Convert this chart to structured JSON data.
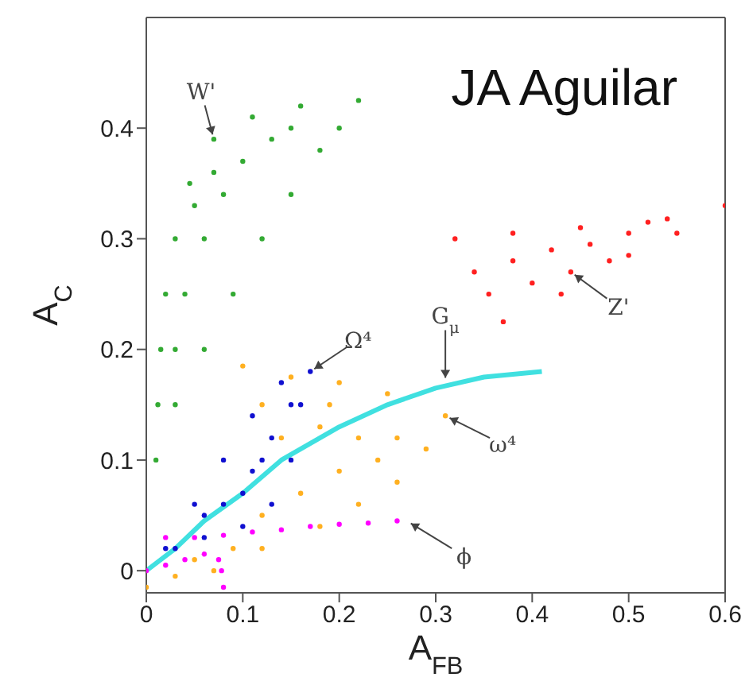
{
  "chart_data": {
    "type": "scatter",
    "xlabel": "A$_{FB}$",
    "ylabel": "A$_{C}$",
    "xlim": [
      0,
      0.6
    ],
    "xticks": [
      0,
      0.1,
      0.2,
      0.3,
      0.4,
      0.5,
      0.6
    ],
    "ylim": [
      -0.02,
      0.5
    ],
    "yticks": [
      0,
      0.1,
      0.2,
      0.3,
      0.4
    ],
    "grid": false,
    "legend": false,
    "marker": "circle",
    "series": [
      {
        "color": "#33aa33",
        "x": [
          0.01,
          0.012,
          0.015,
          0.02,
          0.03,
          0.045,
          0.07,
          0.11,
          0.16,
          0.22,
          0.03,
          0.06,
          0.09,
          0.12,
          0.15,
          0.18,
          0.2,
          0.04,
          0.06,
          0.08,
          0.1,
          0.13,
          0.03,
          0.05,
          0.07,
          0.15
        ],
        "values": [
          0.1,
          0.15,
          0.2,
          0.25,
          0.3,
          0.35,
          0.39,
          0.41,
          0.42,
          0.425,
          0.15,
          0.2,
          0.25,
          0.3,
          0.34,
          0.38,
          0.4,
          0.25,
          0.3,
          0.34,
          0.37,
          0.39,
          0.2,
          0.33,
          0.36,
          0.4
        ]
      },
      {
        "color": "#ff2020",
        "x": [
          0.32,
          0.6,
          0.37,
          0.43,
          0.5,
          0.55,
          0.38,
          0.45,
          0.52,
          0.34,
          0.355,
          0.38,
          0.42,
          0.46,
          0.5,
          0.4,
          0.44,
          0.48,
          0.54
        ],
        "values": [
          0.3,
          0.33,
          0.225,
          0.25,
          0.285,
          0.305,
          0.305,
          0.31,
          0.315,
          0.27,
          0.25,
          0.28,
          0.29,
          0.295,
          0.305,
          0.26,
          0.27,
          0.28,
          0.318
        ]
      },
      {
        "color": "#ffb020",
        "x": [
          0.0,
          0.03,
          0.07,
          0.12,
          0.18,
          0.22,
          0.26,
          0.29,
          0.31,
          0.25,
          0.2,
          0.15,
          0.1,
          0.12,
          0.14,
          0.18,
          0.22,
          0.26,
          0.2,
          0.16,
          0.12,
          0.09,
          0.05,
          0.24,
          0.19
        ],
        "values": [
          -0.015,
          -0.005,
          0.0,
          0.02,
          0.04,
          0.06,
          0.08,
          0.11,
          0.14,
          0.16,
          0.17,
          0.175,
          0.185,
          0.15,
          0.12,
          0.13,
          0.12,
          0.12,
          0.09,
          0.07,
          0.05,
          0.02,
          0.01,
          0.1,
          0.15
        ]
      },
      {
        "color": "#1010d0",
        "x": [
          0.02,
          0.05,
          0.08,
          0.11,
          0.14,
          0.17,
          0.16,
          0.15,
          0.13,
          0.1,
          0.06,
          0.03,
          0.08,
          0.11,
          0.13,
          0.15,
          0.1,
          0.06,
          0.12
        ],
        "values": [
          0.02,
          0.06,
          0.1,
          0.14,
          0.17,
          0.18,
          0.15,
          0.1,
          0.06,
          0.04,
          0.03,
          0.02,
          0.06,
          0.09,
          0.12,
          0.15,
          0.07,
          0.05,
          0.1
        ]
      },
      {
        "color": "#ff00ff",
        "x": [
          0.0,
          0.02,
          0.04,
          0.06,
          0.075,
          0.08,
          0.078,
          0.02,
          0.05,
          0.08,
          0.11,
          0.14,
          0.17,
          0.2,
          0.23,
          0.26
        ],
        "values": [
          0.0,
          0.005,
          0.01,
          0.015,
          0.01,
          -0.015,
          0.0,
          0.03,
          0.03,
          0.032,
          0.035,
          0.037,
          0.04,
          0.042,
          0.043,
          0.045
        ]
      },
      {
        "type": "line",
        "marker": "none",
        "color": "#40e0e0",
        "x": [
          0,
          0.03,
          0.06,
          0.1,
          0.14,
          0.2,
          0.25,
          0.3,
          0.35,
          0.41
        ],
        "values": [
          0,
          0.02,
          0.045,
          0.07,
          0.1,
          0.13,
          0.15,
          0.165,
          0.175,
          0.18
        ]
      }
    ],
    "annotations": [
      "JA Aguilar",
      {
        "text": "W'",
        "x": 0.07,
        "y": 0.39
      },
      {
        "text": "Z'",
        "x": 0.44,
        "y": 0.27
      },
      {
        "text": "Ω⁴",
        "x": 0.17,
        "y": 0.18
      },
      {
        "text": "G$_{μ}$",
        "x": 0.31,
        "y": 0.17
      },
      {
        "text": "ω⁴",
        "x": 0.31,
        "y": 0.14
      },
      {
        "text": "ϕ",
        "x": 0.27,
        "y": 0.045
      }
    ]
  }
}
